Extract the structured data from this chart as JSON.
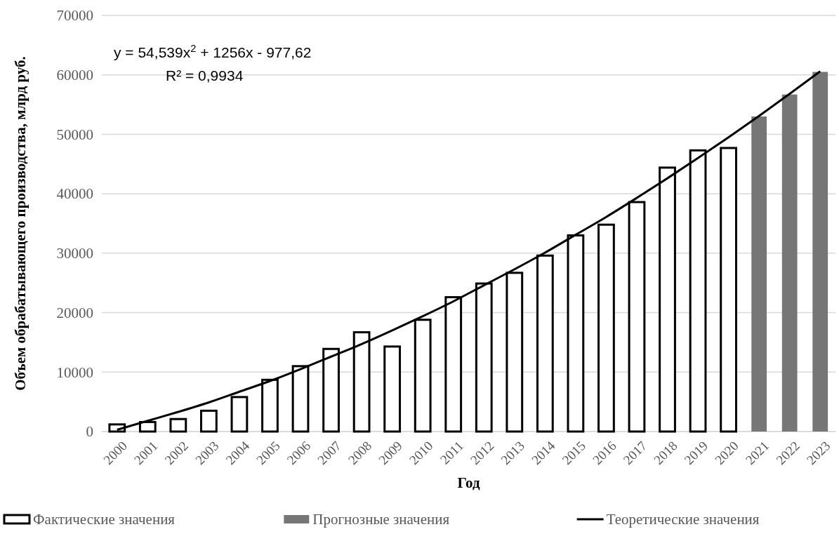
{
  "chart_data": {
    "type": "bar",
    "xlabel": "Год",
    "ylabel": "Объем обрабатывающего производства, млрд руб.",
    "categories": [
      "2000",
      "2001",
      "2002",
      "2003",
      "2004",
      "2005",
      "2006",
      "2007",
      "2008",
      "2009",
      "2010",
      "2011",
      "2012",
      "2013",
      "2014",
      "2015",
      "2016",
      "2017",
      "2018",
      "2019",
      "2020",
      "2021",
      "2022",
      "2023"
    ],
    "series": [
      {
        "name": "Фактические значения",
        "color": "#ffffff",
        "values": [
          1200,
          1600,
          2100,
          3500,
          5800,
          8700,
          11000,
          13900,
          16700,
          14300,
          18800,
          22600,
          24900,
          26700,
          29600,
          33000,
          34800,
          38600,
          44400,
          47300,
          47700,
          null,
          null,
          null
        ]
      },
      {
        "name": "Прогнозные значения",
        "color": "#767676",
        "values": [
          null,
          null,
          null,
          null,
          null,
          null,
          null,
          null,
          null,
          null,
          null,
          null,
          null,
          null,
          null,
          null,
          null,
          null,
          null,
          null,
          null,
          53000,
          56700,
          60500
        ]
      },
      {
        "name": "Теоретические значения",
        "type": "line",
        "color": "#000000",
        "values": [
          300,
          1800,
          3300,
          4900,
          6700,
          8500,
          10500,
          12600,
          14700,
          17000,
          19400,
          21900,
          24600,
          27300,
          30100,
          33100,
          36100,
          39300,
          42600,
          46000,
          49500,
          53100,
          56800,
          60600
        ]
      }
    ],
    "ylim": [
      0,
      70000
    ],
    "yticks": [
      0,
      10000,
      20000,
      30000,
      40000,
      50000,
      60000,
      70000
    ],
    "grid": "y",
    "legend": "bottom",
    "annotations": [
      "y = 54,539x$^{2}$ + 1256x - 977,62",
      "R² = 0,9934"
    ]
  }
}
